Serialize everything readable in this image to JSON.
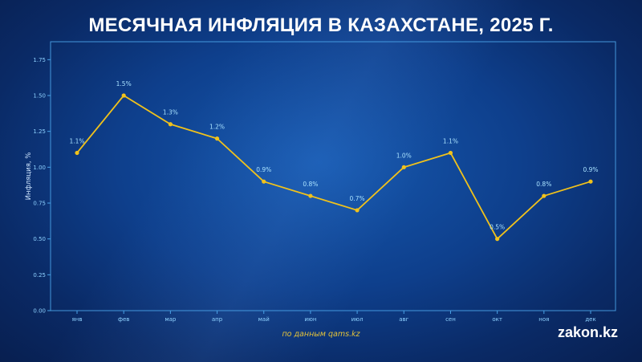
{
  "title": "МЕСЯЧНАЯ ИНФЛЯЦИЯ В КАЗАХСТАНЕ, 2025 Г.",
  "source": "по данным qams.kz",
  "brand": "zakon.kz",
  "colors": {
    "line": "#f1c21b",
    "axis_text": "#8fd2ff",
    "label_text": "#a9e2ff",
    "frame": "#4aa3e8"
  },
  "chart_data": {
    "type": "line",
    "title": "МЕСЯЧНАЯ ИНФЛЯЦИЯ В КАЗАХСТАНЕ, 2025 Г.",
    "xlabel": "",
    "ylabel": "Инфляция, %",
    "ylim": [
      0,
      1.875
    ],
    "yticks": [
      "0.00",
      "0.25",
      "0.50",
      "0.75",
      "1.00",
      "1.25",
      "1.50",
      "1.75"
    ],
    "categories": [
      "янв",
      "фев",
      "мар",
      "апр",
      "май",
      "июн",
      "июл",
      "авг",
      "сен",
      "окт",
      "ноя",
      "дек"
    ],
    "values": [
      1.1,
      1.5,
      1.3,
      1.2,
      0.9,
      0.8,
      0.7,
      1.0,
      1.1,
      0.5,
      0.8,
      0.9
    ],
    "data_labels": [
      "1.1%",
      "1.5%",
      "1.3%",
      "1.2%",
      "0.9%",
      "0.8%",
      "0.7%",
      "1.0%",
      "1.1%",
      "0.5%",
      "0.8%",
      "0.9%"
    ],
    "grid": false,
    "legend": "none"
  }
}
